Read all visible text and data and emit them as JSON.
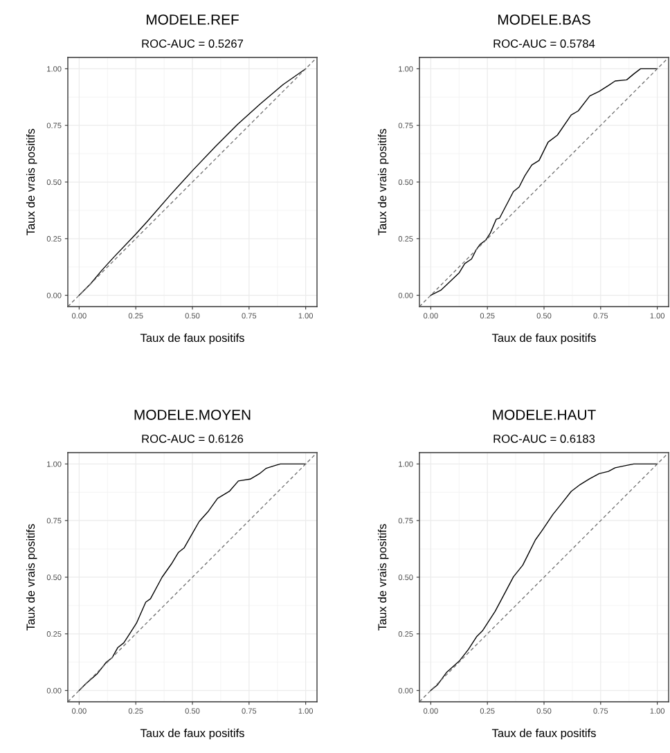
{
  "chart_data": [
    {
      "type": "line",
      "title": "MODELE.REF",
      "subtitle": "ROC-AUC = 0.5267",
      "xlabel": "Taux de faux positifs",
      "ylabel": "Taux de vrais positifs",
      "xlim": [
        -0.05,
        1.05
      ],
      "ylim": [
        -0.05,
        1.05
      ],
      "xticks": [
        {
          "value": 0,
          "label": "0.00"
        },
        {
          "value": 0.25,
          "label": "0.25"
        },
        {
          "value": 0.5,
          "label": "0.50"
        },
        {
          "value": 0.75,
          "label": "0.75"
        },
        {
          "value": 1,
          "label": "1.00"
        }
      ],
      "yticks": [
        {
          "value": 0,
          "label": "0.00"
        },
        {
          "value": 0.25,
          "label": "0.25"
        },
        {
          "value": 0.5,
          "label": "0.50"
        },
        {
          "value": 0.75,
          "label": "0.75"
        },
        {
          "value": 1,
          "label": "1.00"
        }
      ],
      "grid": true,
      "series": [
        {
          "color": "#000000",
          "line_style": "solid",
          "x": [
            0,
            0.05,
            0.1,
            0.15,
            0.25,
            0.3,
            0.4,
            0.5,
            0.6,
            0.7,
            0.75,
            0.8,
            0.9,
            1
          ],
          "values": [
            0,
            0.05,
            0.11,
            0.165,
            0.27,
            0.325,
            0.44,
            0.55,
            0.655,
            0.755,
            0.8,
            0.845,
            0.93,
            1
          ]
        },
        {
          "color": "#666666",
          "line_style": "dashed",
          "x": [
            -0.05,
            1.05
          ],
          "values": [
            -0.05,
            1.05
          ]
        }
      ]
    },
    {
      "type": "line",
      "title": "MODELE.BAS",
      "subtitle": "ROC-AUC = 0.5784",
      "xlabel": "Taux de faux positifs",
      "ylabel": "Taux de vrais positifs",
      "xlim": [
        -0.05,
        1.05
      ],
      "ylim": [
        -0.05,
        1.05
      ],
      "xticks": [
        {
          "value": 0,
          "label": "0.00"
        },
        {
          "value": 0.25,
          "label": "0.25"
        },
        {
          "value": 0.5,
          "label": "0.50"
        },
        {
          "value": 0.75,
          "label": "0.75"
        },
        {
          "value": 1,
          "label": "1.00"
        }
      ],
      "yticks": [
        {
          "value": 0,
          "label": "0.00"
        },
        {
          "value": 0.25,
          "label": "0.25"
        },
        {
          "value": 0.5,
          "label": "0.50"
        },
        {
          "value": 0.75,
          "label": "0.75"
        },
        {
          "value": 1,
          "label": "1.00"
        }
      ],
      "grid": true,
      "series": [
        {
          "color": "#000000",
          "line_style": "solid",
          "x": [
            0,
            0.044,
            0.07,
            0.126,
            0.15,
            0.18,
            0.2,
            0.217,
            0.243,
            0.263,
            0.289,
            0.304,
            0.365,
            0.39,
            0.416,
            0.446,
            0.478,
            0.518,
            0.559,
            0.62,
            0.651,
            0.702,
            0.743,
            0.784,
            0.814,
            0.865,
            0.896,
            0.926,
            1
          ],
          "values": [
            0,
            0.022,
            0.046,
            0.1,
            0.14,
            0.16,
            0.2,
            0.224,
            0.244,
            0.275,
            0.336,
            0.341,
            0.458,
            0.478,
            0.529,
            0.575,
            0.595,
            0.676,
            0.707,
            0.796,
            0.814,
            0.88,
            0.9,
            0.926,
            0.946,
            0.951,
            0.977,
            1,
            1
          ]
        },
        {
          "color": "#666666",
          "line_style": "dashed",
          "x": [
            -0.05,
            1.05
          ],
          "values": [
            -0.05,
            1.05
          ]
        }
      ]
    },
    {
      "type": "line",
      "title": "MODELE.MOYEN",
      "subtitle": "ROC-AUC = 0.6126",
      "xlabel": "Taux de faux positifs",
      "ylabel": "Taux de vrais positifs",
      "xlim": [
        -0.05,
        1.05
      ],
      "ylim": [
        -0.05,
        1.05
      ],
      "xticks": [
        {
          "value": 0,
          "label": "0.00"
        },
        {
          "value": 0.25,
          "label": "0.25"
        },
        {
          "value": 0.5,
          "label": "0.50"
        },
        {
          "value": 0.75,
          "label": "0.75"
        },
        {
          "value": 1,
          "label": "1.00"
        }
      ],
      "yticks": [
        {
          "value": 0,
          "label": "0.00"
        },
        {
          "value": 0.25,
          "label": "0.25"
        },
        {
          "value": 0.5,
          "label": "0.50"
        },
        {
          "value": 0.75,
          "label": "0.75"
        },
        {
          "value": 1,
          "label": "1.00"
        }
      ],
      "grid": true,
      "series": [
        {
          "color": "#000000",
          "line_style": "solid",
          "x": [
            0,
            0.03,
            0.08,
            0.12,
            0.146,
            0.171,
            0.197,
            0.233,
            0.253,
            0.294,
            0.315,
            0.366,
            0.407,
            0.438,
            0.463,
            0.53,
            0.571,
            0.611,
            0.663,
            0.703,
            0.755,
            0.796,
            0.826,
            0.867,
            0.888,
            1
          ],
          "values": [
            0,
            0.03,
            0.074,
            0.125,
            0.145,
            0.19,
            0.21,
            0.266,
            0.297,
            0.39,
            0.405,
            0.5,
            0.558,
            0.609,
            0.629,
            0.746,
            0.792,
            0.848,
            0.879,
            0.925,
            0.933,
            0.957,
            0.981,
            0.994,
            1,
            1
          ]
        },
        {
          "color": "#666666",
          "line_style": "dashed",
          "x": [
            -0.05,
            1.05
          ],
          "values": [
            -0.05,
            1.05
          ]
        }
      ]
    },
    {
      "type": "line",
      "title": "MODELE.HAUT",
      "subtitle": "ROC-AUC = 0.6183",
      "xlabel": "Taux de faux positifs",
      "ylabel": "Taux de vrais positifs",
      "xlim": [
        -0.05,
        1.05
      ],
      "ylim": [
        -0.05,
        1.05
      ],
      "xticks": [
        {
          "value": 0,
          "label": "0.00"
        },
        {
          "value": 0.25,
          "label": "0.25"
        },
        {
          "value": 0.5,
          "label": "0.50"
        },
        {
          "value": 0.75,
          "label": "0.75"
        },
        {
          "value": 1,
          "label": "1.00"
        }
      ],
      "yticks": [
        {
          "value": 0,
          "label": "0.00"
        },
        {
          "value": 0.25,
          "label": "0.25"
        },
        {
          "value": 0.5,
          "label": "0.50"
        },
        {
          "value": 0.75,
          "label": "0.75"
        },
        {
          "value": 1,
          "label": "1.00"
        }
      ],
      "grid": true,
      "series": [
        {
          "color": "#000000",
          "line_style": "solid",
          "x": [
            0,
            0.03,
            0.069,
            0.126,
            0.166,
            0.202,
            0.228,
            0.284,
            0.319,
            0.365,
            0.406,
            0.462,
            0.488,
            0.539,
            0.58,
            0.62,
            0.661,
            0.702,
            0.743,
            0.784,
            0.814,
            0.865,
            0.896,
            1
          ],
          "values": [
            0,
            0.025,
            0.079,
            0.13,
            0.181,
            0.237,
            0.263,
            0.349,
            0.415,
            0.502,
            0.553,
            0.665,
            0.701,
            0.777,
            0.828,
            0.879,
            0.91,
            0.935,
            0.957,
            0.967,
            0.983,
            0.994,
            1,
            1
          ]
        },
        {
          "color": "#666666",
          "line_style": "dashed",
          "x": [
            -0.05,
            1.05
          ],
          "values": [
            -0.05,
            1.05
          ]
        }
      ]
    }
  ]
}
